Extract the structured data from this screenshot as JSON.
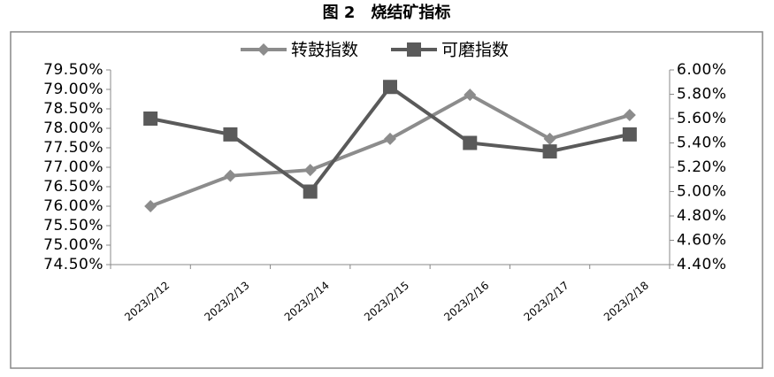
{
  "chart_data": {
    "type": "line",
    "title": "图 2　烧结矿指标",
    "categories": [
      "2023/2/12",
      "2023/2/13",
      "2023/2/14",
      "2023/2/15",
      "2023/2/16",
      "2023/2/17",
      "2023/2/18"
    ],
    "series": [
      {
        "name": "转鼓指数",
        "color": "#8c8c8c",
        "marker": "diamond",
        "values": [
          76.0,
          76.78,
          76.93,
          77.73,
          78.86,
          77.73,
          78.34
        ]
      },
      {
        "name": "可磨指数",
        "color": "#5a5a5a",
        "marker": "square",
        "axis": "y2",
        "values": [
          5.6,
          5.47,
          5.0,
          5.86,
          5.4,
          5.33,
          5.47
        ]
      }
    ],
    "ylim": [
      74.5,
      79.5
    ],
    "yticks": [
      {
        "value": 74.5,
        "label": "74.50%"
      },
      {
        "value": 75,
        "label": "75.00%"
      },
      {
        "value": 75.5,
        "label": "75.50%"
      },
      {
        "value": 76,
        "label": "76.00%"
      },
      {
        "value": 76.5,
        "label": "76.50%"
      },
      {
        "value": 77,
        "label": "77.00%"
      },
      {
        "value": 77.5,
        "label": "77.50%"
      },
      {
        "value": 78,
        "label": "78.00%"
      },
      {
        "value": 78.5,
        "label": "78.50%"
      },
      {
        "value": 79,
        "label": "79.00%"
      },
      {
        "value": 79.5,
        "label": "79.50%"
      }
    ],
    "y2lim": [
      4.4,
      6.0
    ],
    "y2ticks": [
      {
        "value": 4.4,
        "label": "4.40%"
      },
      {
        "value": 4.6,
        "label": "4.60%"
      },
      {
        "value": 4.8,
        "label": "4.80%"
      },
      {
        "value": 5.0,
        "label": "5.00%"
      },
      {
        "value": 5.2,
        "label": "5.20%"
      },
      {
        "value": 5.4,
        "label": "5.40%"
      },
      {
        "value": 5.6,
        "label": "5.60%"
      },
      {
        "value": 5.8,
        "label": "5.80%"
      },
      {
        "value": 6.0,
        "label": "6.00%"
      }
    ],
    "legend": "top"
  }
}
